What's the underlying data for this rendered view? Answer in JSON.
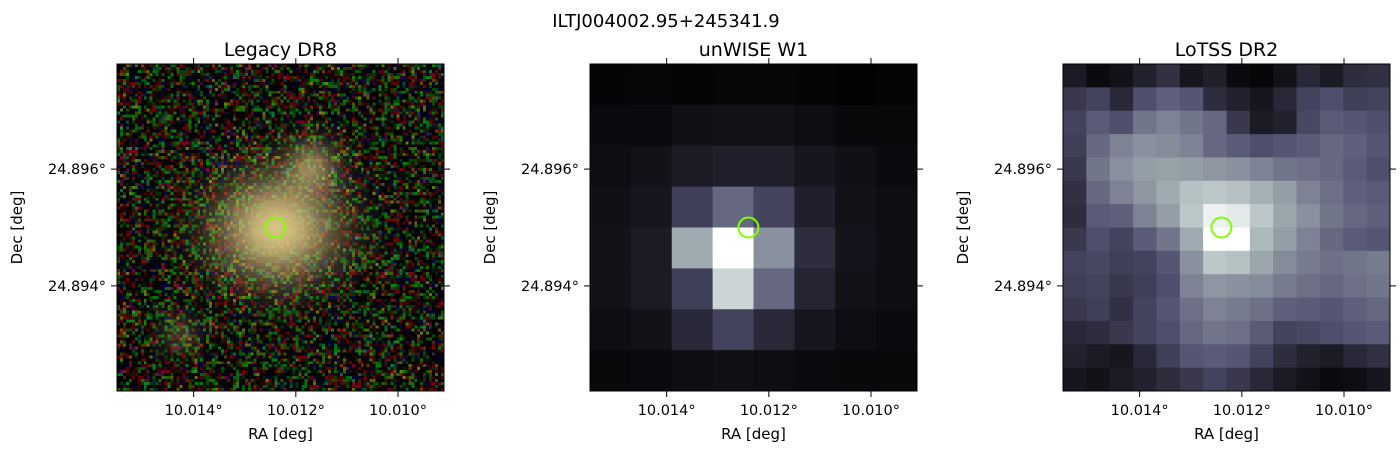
{
  "figure": {
    "suptitle": "ILTJ004002.95+245341.9"
  },
  "chart_data": [
    {
      "type": "heatmap",
      "title": "Legacy DR8",
      "image_kind": "rgb-optical",
      "xlabel": "RA [deg]",
      "ylabel": "Dec [deg]",
      "xticks": [
        10.014,
        10.012,
        10.01
      ],
      "xticklabels": [
        "10.014°",
        "10.012°",
        "10.010°"
      ],
      "yticks": [
        24.896,
        24.894
      ],
      "yticklabels": [
        "24.896°",
        "24.894°"
      ],
      "xlim": [
        10.0155,
        10.0091
      ],
      "ylim": [
        24.8922,
        24.8978
      ],
      "marker": {
        "shape": "circle",
        "ra": 10.0124,
        "dec": 24.895,
        "color": "#7fff00"
      },
      "sources": [
        {
          "ra": 10.0124,
          "dec": 24.895,
          "strength": 1.0
        },
        {
          "ra": 10.0117,
          "dec": 24.8961,
          "strength": 0.5
        },
        {
          "ra": 10.0143,
          "dec": 24.8932,
          "strength": 0.25
        }
      ]
    },
    {
      "type": "heatmap",
      "title": "unWISE W1",
      "image_kind": "grayscale-bone",
      "xlabel": "RA [deg]",
      "ylabel": "Dec [deg]",
      "xticks": [
        10.014,
        10.012,
        10.01
      ],
      "xticklabels": [
        "10.014°",
        "10.012°",
        "10.010°"
      ],
      "yticks": [
        24.896,
        24.894
      ],
      "yticklabels": [
        "24.896°",
        "24.894°"
      ],
      "xlim": [
        10.0155,
        10.0091
      ],
      "ylim": [
        24.8922,
        24.8978
      ],
      "marker": {
        "shape": "circle",
        "ra": 10.0124,
        "dec": 24.895,
        "color": "#7fff00"
      },
      "grid_cols": 8,
      "grid_rows": 8,
      "values": [
        [
          0.02,
          0.03,
          0.02,
          0.03,
          0.03,
          0.02,
          0.01,
          0.02
        ],
        [
          0.05,
          0.05,
          0.07,
          0.08,
          0.08,
          0.06,
          0.04,
          0.04
        ],
        [
          0.06,
          0.08,
          0.12,
          0.14,
          0.14,
          0.1,
          0.07,
          0.05
        ],
        [
          0.07,
          0.1,
          0.28,
          0.45,
          0.3,
          0.14,
          0.08,
          0.06
        ],
        [
          0.08,
          0.12,
          0.7,
          1.0,
          0.6,
          0.2,
          0.09,
          0.06
        ],
        [
          0.08,
          0.12,
          0.28,
          0.85,
          0.45,
          0.16,
          0.08,
          0.06
        ],
        [
          0.06,
          0.08,
          0.18,
          0.3,
          0.18,
          0.1,
          0.06,
          0.05
        ],
        [
          0.04,
          0.05,
          0.06,
          0.07,
          0.06,
          0.05,
          0.04,
          0.04
        ]
      ]
    },
    {
      "type": "heatmap",
      "title": "LoTSS DR2",
      "image_kind": "grayscale-bone",
      "xlabel": "RA [deg]",
      "ylabel": "Dec [deg]",
      "xticks": [
        10.014,
        10.012,
        10.01
      ],
      "xticklabels": [
        "10.014°",
        "10.012°",
        "10.010°"
      ],
      "yticks": [
        24.896,
        24.894
      ],
      "yticklabels": [
        "24.896°",
        "24.894°"
      ],
      "xlim": [
        10.0155,
        10.0091
      ],
      "ylim": [
        24.8922,
        24.8978
      ],
      "marker": {
        "shape": "circle",
        "ra": 10.0124,
        "dec": 24.895,
        "color": "#7fff00"
      },
      "grid_cols": 14,
      "grid_rows": 14,
      "values": [
        [
          0.12,
          0.05,
          0.08,
          0.15,
          0.22,
          0.1,
          0.14,
          0.05,
          0.03,
          0.08,
          0.18,
          0.12,
          0.2,
          0.22
        ],
        [
          0.25,
          0.3,
          0.18,
          0.35,
          0.42,
          0.38,
          0.2,
          0.15,
          0.1,
          0.18,
          0.3,
          0.35,
          0.28,
          0.3
        ],
        [
          0.3,
          0.4,
          0.35,
          0.5,
          0.55,
          0.5,
          0.45,
          0.25,
          0.12,
          0.15,
          0.32,
          0.4,
          0.38,
          0.35
        ],
        [
          0.28,
          0.45,
          0.55,
          0.6,
          0.58,
          0.55,
          0.45,
          0.4,
          0.35,
          0.38,
          0.4,
          0.45,
          0.42,
          0.38
        ],
        [
          0.25,
          0.5,
          0.6,
          0.65,
          0.66,
          0.65,
          0.62,
          0.6,
          0.55,
          0.5,
          0.48,
          0.45,
          0.4,
          0.35
        ],
        [
          0.22,
          0.45,
          0.55,
          0.62,
          0.7,
          0.78,
          0.8,
          0.78,
          0.72,
          0.65,
          0.55,
          0.48,
          0.42,
          0.4
        ],
        [
          0.2,
          0.4,
          0.42,
          0.55,
          0.65,
          0.8,
          0.95,
          0.92,
          0.8,
          0.68,
          0.6,
          0.5,
          0.45,
          0.42
        ],
        [
          0.25,
          0.35,
          0.3,
          0.4,
          0.5,
          0.7,
          1.0,
          1.0,
          0.75,
          0.65,
          0.55,
          0.45,
          0.4,
          0.38
        ],
        [
          0.3,
          0.32,
          0.28,
          0.3,
          0.38,
          0.6,
          0.8,
          0.78,
          0.68,
          0.58,
          0.52,
          0.48,
          0.5,
          0.52
        ],
        [
          0.28,
          0.3,
          0.25,
          0.28,
          0.35,
          0.55,
          0.62,
          0.6,
          0.58,
          0.52,
          0.48,
          0.45,
          0.48,
          0.5
        ],
        [
          0.25,
          0.28,
          0.22,
          0.3,
          0.38,
          0.48,
          0.55,
          0.52,
          0.48,
          0.42,
          0.4,
          0.38,
          0.42,
          0.45
        ],
        [
          0.18,
          0.2,
          0.25,
          0.3,
          0.35,
          0.45,
          0.5,
          0.48,
          0.4,
          0.3,
          0.32,
          0.35,
          0.38,
          0.4
        ],
        [
          0.15,
          0.12,
          0.1,
          0.18,
          0.28,
          0.38,
          0.4,
          0.38,
          0.3,
          0.2,
          0.15,
          0.12,
          0.18,
          0.22
        ],
        [
          0.1,
          0.08,
          0.12,
          0.15,
          0.2,
          0.25,
          0.3,
          0.25,
          0.18,
          0.12,
          0.08,
          0.05,
          0.06,
          0.1
        ]
      ]
    }
  ]
}
